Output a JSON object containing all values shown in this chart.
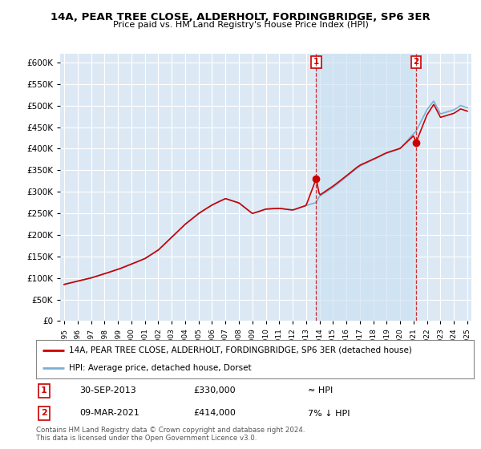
{
  "title1": "14A, PEAR TREE CLOSE, ALDERHOLT, FORDINGBRIDGE, SP6 3ER",
  "title2": "Price paid vs. HM Land Registry's House Price Index (HPI)",
  "legend_line1": "14A, PEAR TREE CLOSE, ALDERHOLT, FORDINGBRIDGE, SP6 3ER (detached house)",
  "legend_line2": "HPI: Average price, detached house, Dorset",
  "table_row1": [
    "1",
    "30-SEP-2013",
    "£330,000",
    "≈ HPI"
  ],
  "table_row2": [
    "2",
    "09-MAR-2021",
    "£414,000",
    "7% ↓ HPI"
  ],
  "footnote1": "Contains HM Land Registry data © Crown copyright and database right 2024.",
  "footnote2": "This data is licensed under the Open Government Licence v3.0.",
  "ylim": [
    0,
    620000
  ],
  "yticks": [
    0,
    50000,
    100000,
    150000,
    200000,
    250000,
    300000,
    350000,
    400000,
    450000,
    500000,
    550000,
    600000
  ],
  "background_color": "#ffffff",
  "plot_bg_color": "#dce9f5",
  "grid_color": "#ffffff",
  "hpi_color": "#7bafd4",
  "price_color": "#cc0000",
  "shade_color": "#dce9f5",
  "marker1_x": 2013.75,
  "marker1_y": 330000,
  "marker2_x": 2021.18,
  "marker2_y": 414000,
  "xlim_min": 1994.7,
  "xlim_max": 2025.3
}
